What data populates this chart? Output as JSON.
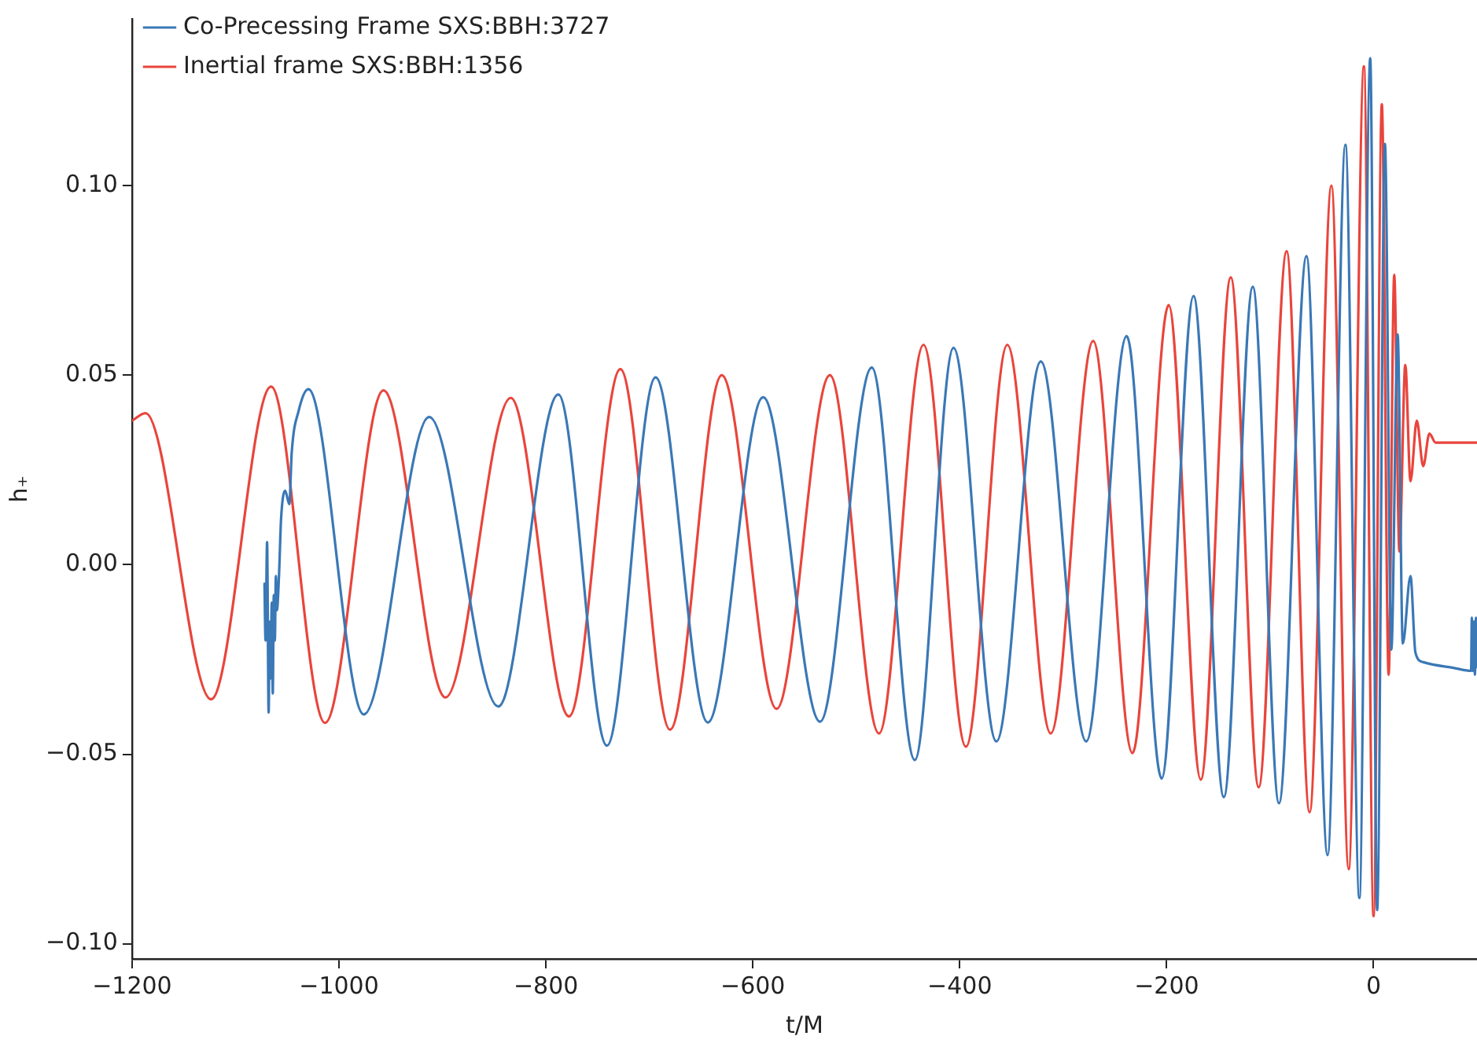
{
  "chart_data": {
    "type": "line",
    "xlabel": "t/M",
    "ylabel": "h₊",
    "xlim": [
      -1200,
      100
    ],
    "ylim": [
      -0.104,
      0.144
    ],
    "xticks": [
      {
        "value": -1200,
        "label": "−1200"
      },
      {
        "value": -1000,
        "label": "−1000"
      },
      {
        "value": -800,
        "label": "−800"
      },
      {
        "value": -600,
        "label": "−600"
      },
      {
        "value": -400,
        "label": "−400"
      },
      {
        "value": -200,
        "label": "−200"
      },
      0
    ],
    "yticks": [
      {
        "value": -0.1,
        "label": "−0.10"
      },
      {
        "value": -0.05,
        "label": "−0.05"
      },
      {
        "value": 0,
        "label": "0.00"
      },
      {
        "value": 0.05,
        "label": "0.05"
      },
      {
        "value": 0.1,
        "label": "0.10"
      }
    ],
    "grid": false,
    "legend": "top left",
    "marker": "none",
    "line_style": "solid",
    "series": [
      {
        "name": "Co-Precessing Frame SXS:BBH:3727",
        "color": "#3a78b6",
        "x": [
          -1072,
          -1071,
          -1069.5,
          -1068,
          -1067,
          -1066,
          -1065,
          -1064,
          -1063,
          -1062,
          -1061,
          -1060,
          -1058,
          -1056,
          -1052,
          -1048,
          -1045.7,
          -1039,
          -1029.6,
          -976,
          -912.8,
          -846,
          -788,
          -741,
          -694,
          -643.5,
          -590,
          -535,
          -485,
          -443.4,
          -406,
          -364.6,
          -321.6,
          -277.7,
          -238.6,
          -204.8,
          -174,
          -144.7,
          -116.7,
          -91.4,
          -64.8,
          -44.4,
          -27.2,
          -13.7,
          -3.2,
          3.5,
          11,
          17.2,
          23.3,
          28.3,
          35.7,
          40.5,
          48,
          78.8,
          94.3,
          95,
          96,
          97,
          98,
          99,
          100
        ],
        "values": [
          -0.005,
          -0.02,
          0.006,
          -0.039,
          -0.015,
          -0.03,
          -0.01,
          -0.034,
          -0.008,
          -0.02,
          -0.003,
          -0.012,
          -0.003,
          0.012,
          0.0195,
          0.016,
          0.0295,
          0.0406,
          0.0463,
          -0.0395,
          0.039,
          -0.0374,
          0.0449,
          -0.0477,
          0.0494,
          -0.0416,
          0.0442,
          -0.0414,
          0.052,
          -0.0515,
          0.0572,
          -0.0466,
          0.0536,
          -0.0466,
          0.0603,
          -0.0564,
          0.0709,
          -0.0613,
          0.0733,
          -0.0629,
          0.0814,
          -0.0766,
          0.1108,
          -0.0879,
          0.1336,
          -0.0911,
          0.111,
          -0.0224,
          0.0608,
          -0.0208,
          -0.003,
          -0.0232,
          -0.0257,
          -0.0273,
          -0.028,
          -0.014,
          -0.028,
          -0.015,
          -0.029,
          -0.014,
          -0.027
        ]
      },
      {
        "name": "Inertial frame SXS:BBH:1356",
        "color": "#e8453c",
        "x": [
          -1200,
          -1187,
          -1123.6,
          -1065.6,
          -1013.5,
          -957,
          -897,
          -834,
          -777.6,
          -728,
          -680,
          -630,
          -577,
          -525.5,
          -478,
          -435,
          -394,
          -354,
          -312,
          -271,
          -233,
          -198,
          -167,
          -138,
          -111,
          -84,
          -61.8,
          -40.7,
          -24,
          -9.3,
          0,
          8,
          14.6,
          20,
          25,
          30.7,
          35.7,
          41.8,
          48,
          54,
          60,
          100
        ],
        "values": [
          0.038,
          0.04,
          -0.0355,
          0.047,
          -0.0417,
          0.046,
          -0.035,
          0.044,
          -0.04,
          0.0516,
          -0.0435,
          0.05,
          -0.038,
          0.05,
          -0.0445,
          0.058,
          -0.048,
          0.058,
          -0.0445,
          0.059,
          -0.0497,
          0.0685,
          -0.0567,
          0.0758,
          -0.0587,
          0.0827,
          -0.0653,
          0.1,
          -0.0803,
          0.1315,
          -0.0927,
          0.1215,
          -0.029,
          0.0765,
          0.0035,
          0.0527,
          0.022,
          0.038,
          0.026,
          0.0346,
          0.0322,
          0.0322
        ]
      }
    ]
  }
}
